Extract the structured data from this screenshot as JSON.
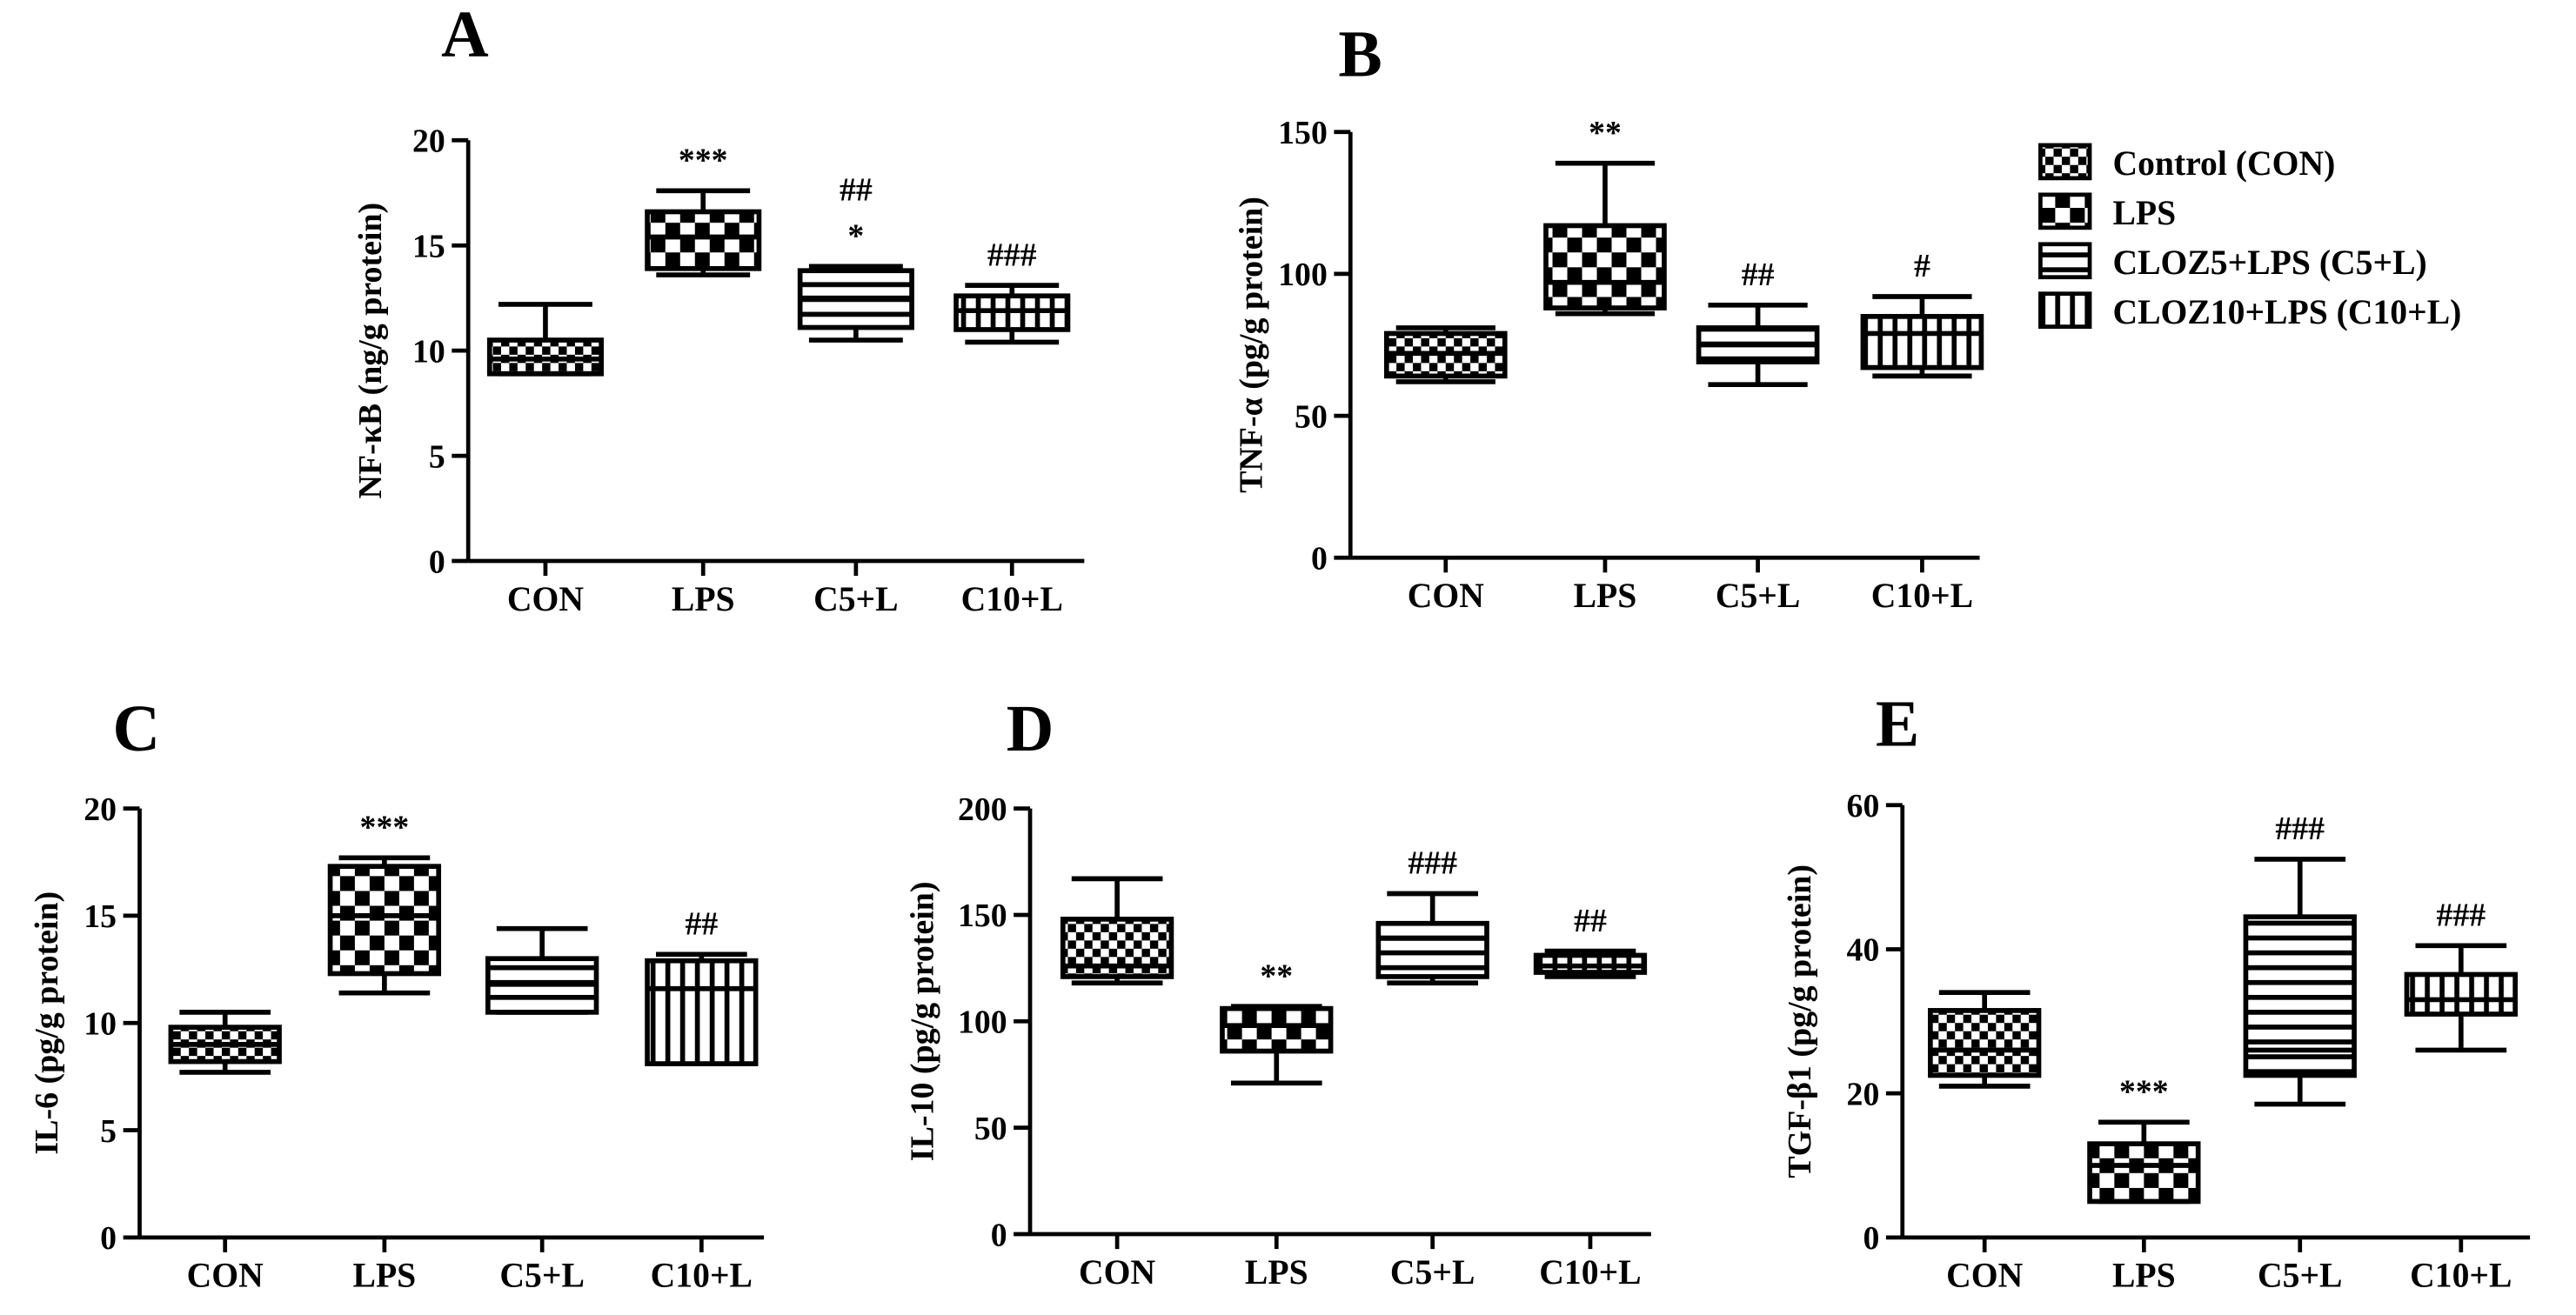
{
  "legend": [
    {
      "key": "CON",
      "label": "Control (CON)",
      "pattern": "checker-small"
    },
    {
      "key": "LPS",
      "label": "LPS",
      "pattern": "checker-large"
    },
    {
      "key": "C5+L",
      "label": "CLOZ5+LPS (C5+L)",
      "pattern": "horizontal"
    },
    {
      "key": "C10+L",
      "label": "CLOZ10+LPS (C10+L)",
      "pattern": "vertical"
    }
  ],
  "chart_data": [
    {
      "panel": "A",
      "type": "boxplot",
      "ylabel": "NF-κB (ng/g protein)",
      "ylim": [
        0,
        20
      ],
      "yticks": [
        0,
        5,
        10,
        15,
        20
      ],
      "categories": [
        "CON",
        "LPS",
        "C5+L",
        "C10+L"
      ],
      "boxes": [
        {
          "min": 8.9,
          "q1": 8.9,
          "median": 9.6,
          "q3": 10.5,
          "max": 12.2,
          "sig": [
            "",
            ""
          ]
        },
        {
          "min": 13.6,
          "q1": 13.9,
          "median": 15.4,
          "q3": 16.6,
          "max": 17.6,
          "sig": [
            "***",
            ""
          ]
        },
        {
          "min": 10.5,
          "q1": 11.1,
          "median": 12.5,
          "q3": 13.8,
          "max": 14.0,
          "sig": [
            "*",
            "##"
          ]
        },
        {
          "min": 10.4,
          "q1": 11.0,
          "median": 11.9,
          "q3": 12.6,
          "max": 13.1,
          "sig": [
            "###",
            ""
          ]
        }
      ]
    },
    {
      "panel": "B",
      "type": "boxplot",
      "ylabel": "TNF-α (pg/g protein)",
      "ylim": [
        0,
        150
      ],
      "yticks": [
        0,
        50,
        100,
        150
      ],
      "categories": [
        "CON",
        "LPS",
        "C5+L",
        "C10+L"
      ],
      "boxes": [
        {
          "min": 62,
          "q1": 64,
          "median": 72,
          "q3": 79,
          "max": 81,
          "sig": [
            "",
            ""
          ]
        },
        {
          "min": 86,
          "q1": 88,
          "median": 97,
          "q3": 117,
          "max": 139,
          "sig": [
            "**",
            ""
          ]
        },
        {
          "min": 61,
          "q1": 69,
          "median": 75,
          "q3": 81,
          "max": 89,
          "sig": [
            "##",
            ""
          ]
        },
        {
          "min": 64,
          "q1": 67,
          "median": 79,
          "q3": 85,
          "max": 92,
          "sig": [
            "#",
            ""
          ]
        }
      ]
    },
    {
      "panel": "C",
      "type": "boxplot",
      "ylabel": "IL-6 (pg/g protein)",
      "ylim": [
        0,
        20
      ],
      "yticks": [
        0,
        5,
        10,
        15,
        20
      ],
      "categories": [
        "CON",
        "LPS",
        "C5+L",
        "C10+L"
      ],
      "boxes": [
        {
          "min": 7.7,
          "q1": 8.2,
          "median": 9.0,
          "q3": 9.8,
          "max": 10.5,
          "sig": [
            "",
            ""
          ]
        },
        {
          "min": 11.4,
          "q1": 12.3,
          "median": 15.0,
          "q3": 17.3,
          "max": 17.7,
          "sig": [
            "***",
            ""
          ]
        },
        {
          "min": 10.5,
          "q1": 10.5,
          "median": 11.8,
          "q3": 13.0,
          "max": 14.4,
          "sig": [
            "",
            ""
          ]
        },
        {
          "min": 8.1,
          "q1": 8.1,
          "median": 11.6,
          "q3": 12.9,
          "max": 13.2,
          "sig": [
            "##",
            ""
          ]
        }
      ]
    },
    {
      "panel": "D",
      "type": "boxplot",
      "ylabel": "IL-10 (pg/g protein)",
      "ylim": [
        0,
        200
      ],
      "yticks": [
        0,
        50,
        100,
        150,
        200
      ],
      "categories": [
        "CON",
        "LPS",
        "C5+L",
        "C10+L"
      ],
      "boxes": [
        {
          "min": 118,
          "q1": 121,
          "median": 126,
          "q3": 148,
          "max": 167,
          "sig": [
            "",
            ""
          ]
        },
        {
          "min": 71,
          "q1": 86,
          "median": 98,
          "q3": 106,
          "max": 107,
          "sig": [
            "**",
            ""
          ]
        },
        {
          "min": 118,
          "q1": 121,
          "median": 139,
          "q3": 146,
          "max": 160,
          "sig": [
            "###",
            ""
          ]
        },
        {
          "min": 121,
          "q1": 123,
          "median": 126,
          "q3": 131,
          "max": 133,
          "sig": [
            "##",
            ""
          ]
        }
      ]
    },
    {
      "panel": "E",
      "type": "boxplot",
      "ylabel": "TGF-β1 (pg/g protein)",
      "ylim": [
        0,
        60
      ],
      "yticks": [
        0,
        20,
        40,
        60
      ],
      "categories": [
        "CON",
        "LPS",
        "C5+L",
        "C10+L"
      ],
      "boxes": [
        {
          "min": 21,
          "q1": 22.5,
          "median": 26,
          "q3": 31.5,
          "max": 34,
          "sig": [
            "",
            ""
          ]
        },
        {
          "min": 5,
          "q1": 5,
          "median": 10,
          "q3": 13,
          "max": 16,
          "sig": [
            "***",
            ""
          ]
        },
        {
          "min": 18.5,
          "q1": 22.5,
          "median": 26,
          "q3": 44.5,
          "max": 52.5,
          "sig": [
            "###",
            ""
          ]
        },
        {
          "min": 26,
          "q1": 31,
          "median": 33,
          "q3": 36.5,
          "max": 40.5,
          "sig": [
            "###",
            ""
          ]
        }
      ]
    }
  ]
}
